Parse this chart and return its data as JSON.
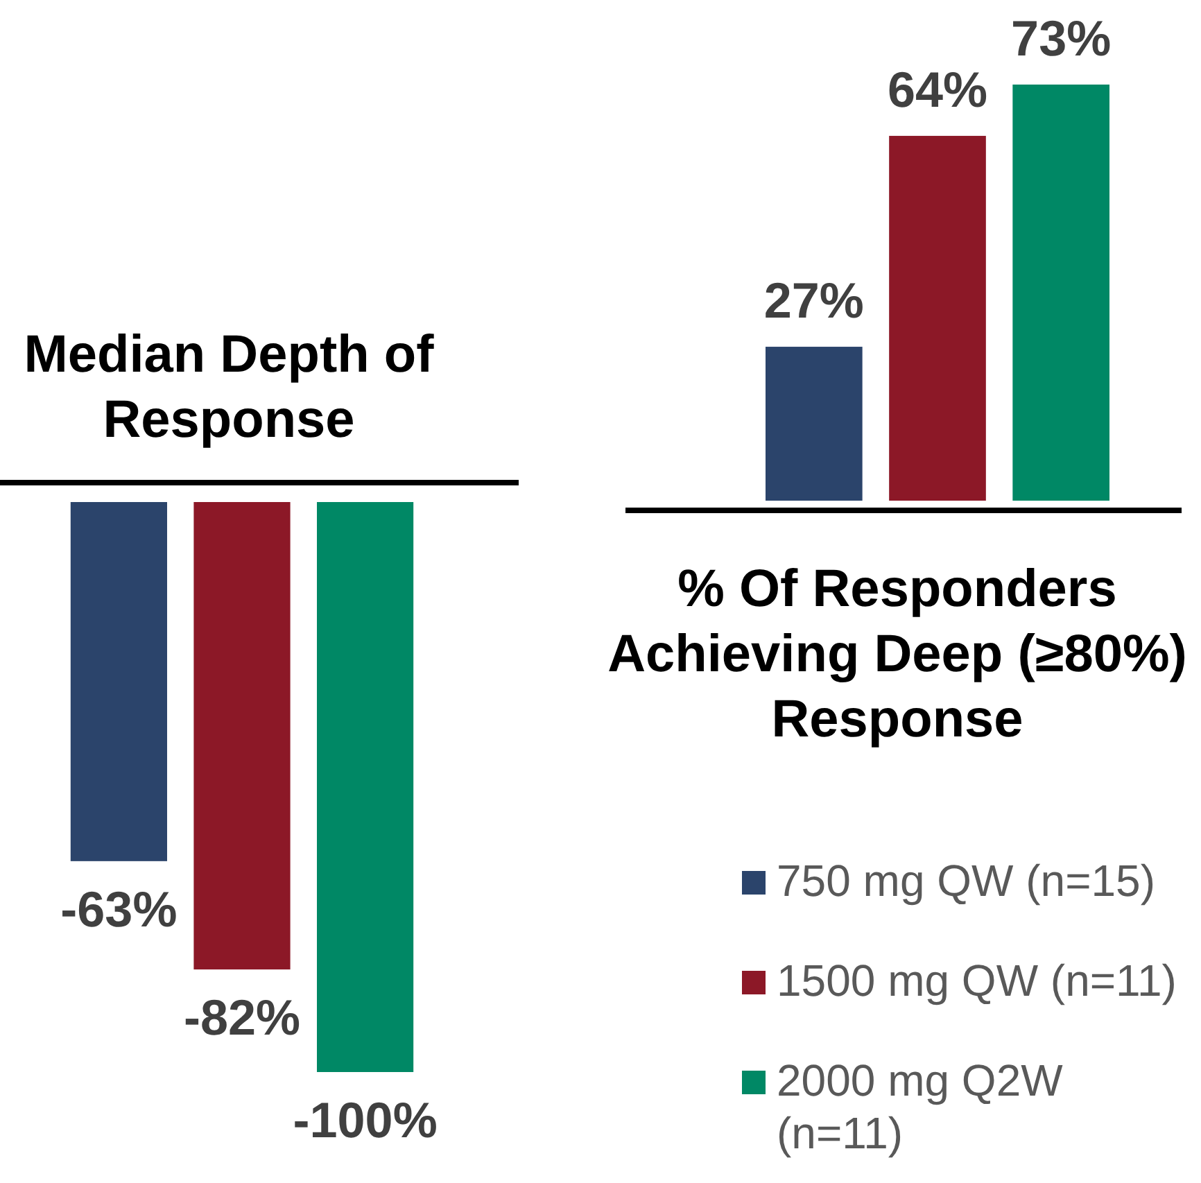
{
  "chart_data": [
    {
      "type": "bar",
      "title": "Median Depth of Response",
      "categories": [
        null
      ],
      "series": [
        {
          "color": "#2b446b",
          "values": [
            -63
          ],
          "value_labels": [
            "-63%"
          ]
        },
        {
          "color": "#8c1827",
          "values": [
            -82
          ],
          "value_labels": [
            "-82%"
          ]
        },
        {
          "color": "#008865",
          "values": [
            -100
          ],
          "value_labels": [
            "-100%"
          ]
        }
      ]
    },
    {
      "type": "bar",
      "title": "% Of Responders Achieving Deep (≥80%) Response",
      "categories": [
        null
      ],
      "series": [
        {
          "name": "750 mg QW (n=15)",
          "color": "#2b446b",
          "values": [
            27
          ],
          "value_labels": [
            "27%"
          ]
        },
        {
          "name": "1500 mg QW (n=11)",
          "color": "#8c1827",
          "values": [
            64
          ],
          "value_labels": [
            "64%"
          ]
        },
        {
          "name": "2000 mg Q2W (n=11)",
          "color": "#008865",
          "values": [
            73
          ],
          "value_labels": [
            "73%"
          ]
        }
      ],
      "legend": "bottom right"
    }
  ]
}
